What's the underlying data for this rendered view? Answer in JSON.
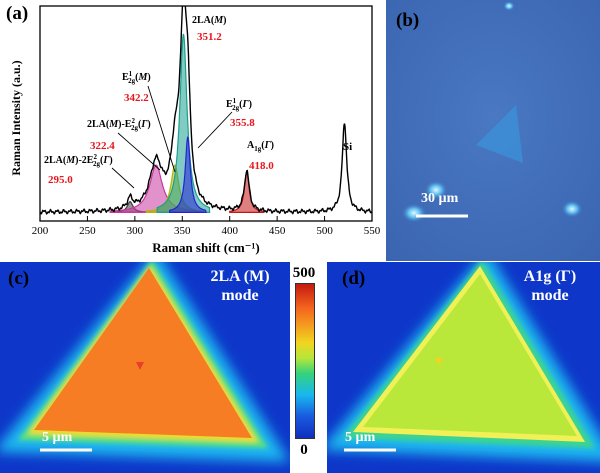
{
  "figure": {
    "panel_labels": {
      "a": "(a)",
      "b": "(b)",
      "c": "(c)",
      "d": "(d)"
    },
    "optical_image": {
      "scale_bar_label": "30 µm"
    },
    "maps": {
      "c": {
        "title_line1": "2LA (M)",
        "title_line2": "mode",
        "scale_bar_label": "5 µm",
        "interior_level": 430
      },
      "d": {
        "title_line1": "A1g (Γ)",
        "title_line2": "mode",
        "scale_bar_label": "5 µm",
        "interior_level": 300
      },
      "colorbar": {
        "max_label": "500",
        "min_label": "0",
        "min": 0,
        "max": 500
      }
    },
    "colors": {
      "label_red": "#e8161c",
      "background_blue": "#0e37c9",
      "curve_black": "#000000"
    }
  },
  "chart_data": {
    "type": "line",
    "title": "",
    "xlabel": "Raman shift (cm⁻¹)",
    "ylabel": "Raman Intensity (a.u.)",
    "xlim": [
      200,
      550
    ],
    "ylim": [
      0,
      100
    ],
    "xticks": [
      200,
      250,
      300,
      350,
      400,
      450,
      500,
      550
    ],
    "baseline": 4,
    "series": [
      {
        "name": "2LA(M)-2E²₂g(Γ)",
        "center": 295.0,
        "height": 5,
        "width": 3.5,
        "color": "#404040"
      },
      {
        "name": "2LA(M)-E²₂g(Γ)",
        "center": 322.4,
        "height": 22,
        "width": 8,
        "color": "#c8389e"
      },
      {
        "name": "E¹₂g(M)",
        "center": 342.2,
        "height": 22,
        "width": 5,
        "color": "#b5b507"
      },
      {
        "name": "2LA(M)",
        "center": 351.2,
        "height": 83,
        "width": 4.6,
        "color": "#1aa08f"
      },
      {
        "name": "E¹₂g(Γ)",
        "center": 355.8,
        "height": 35,
        "width": 3.2,
        "color": "#2424d6"
      },
      {
        "name": "A₁g(Γ)",
        "center": 418.0,
        "height": 19,
        "width": 3.0,
        "color": "#c41616"
      },
      {
        "name": "Si",
        "center": 521.0,
        "height": 42,
        "width": 2.8,
        "color": "#000000"
      }
    ],
    "annotations": [
      {
        "name_parts": [
          "2LA(",
          "M",
          ")"
        ],
        "value": "351.2"
      },
      {
        "name_parts": [
          "E",
          "1",
          "2g",
          "(",
          "M",
          ")"
        ],
        "value": "342.2"
      },
      {
        "name_parts": [
          "E",
          "1",
          "2g",
          "(",
          "Γ",
          ")"
        ],
        "value": "355.8"
      },
      {
        "name_parts": [
          "2LA(",
          "M",
          ")-E",
          "2",
          "2g",
          "(",
          "Γ",
          ")"
        ],
        "value": "322.4"
      },
      {
        "name_parts": [
          "2LA(",
          "M",
          ")-2E",
          "2",
          "2g",
          "(",
          "Γ",
          ")"
        ],
        "value": "295.0"
      },
      {
        "name_parts": [
          "A",
          "1g",
          "(",
          "Γ",
          ")"
        ],
        "value": "418.0"
      },
      {
        "name_parts": [
          "Si"
        ],
        "value": ""
      }
    ]
  }
}
